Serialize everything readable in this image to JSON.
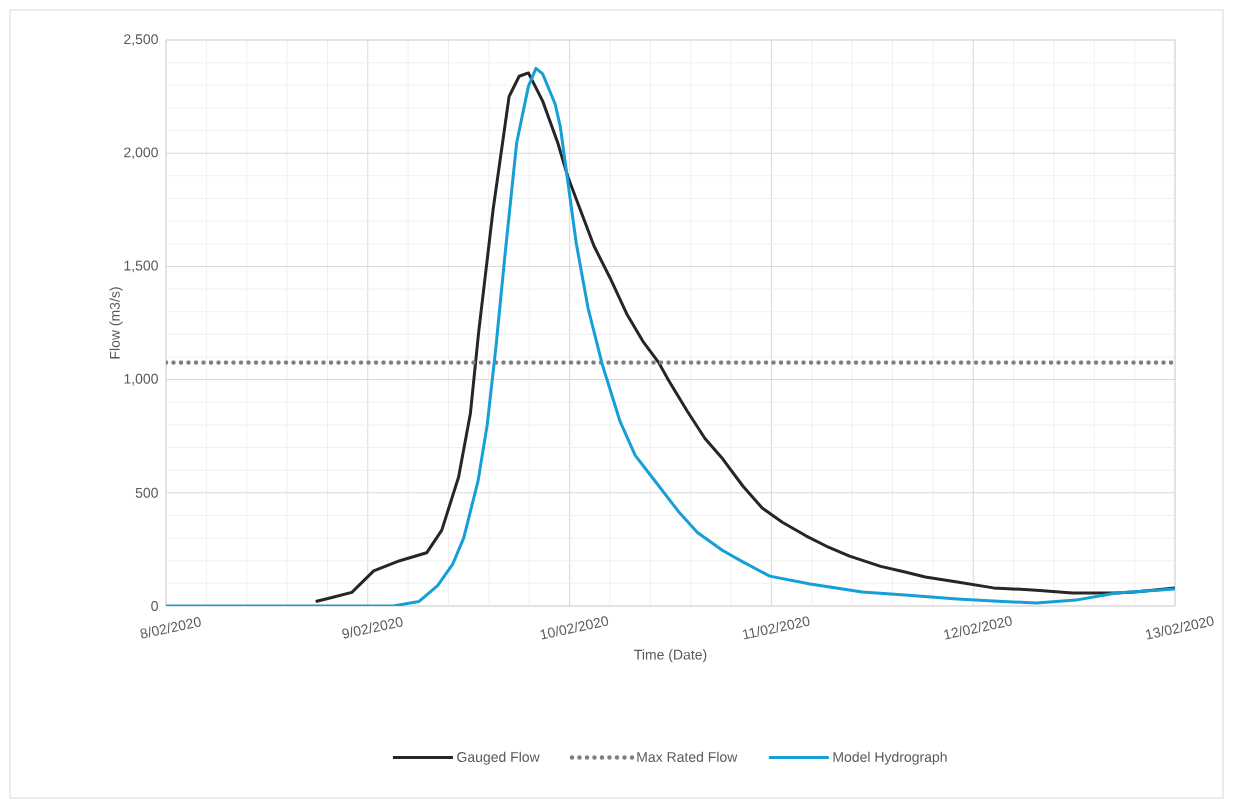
{
  "chart_data": {
    "type": "line",
    "xlabel": "Time (Date)",
    "ylabel": "Flow (m3/s)",
    "xlim": [
      "2020-02-08",
      "2020-02-13"
    ],
    "xticks": [
      {
        "value": "2020-02-08",
        "label": "8/02/2020"
      },
      {
        "value": "2020-02-09",
        "label": "9/02/2020"
      },
      {
        "value": "2020-02-10",
        "label": "10/02/2020"
      },
      {
        "value": "2020-02-11",
        "label": "11/02/2020"
      },
      {
        "value": "2020-02-12",
        "label": "12/02/2020"
      },
      {
        "value": "2020-02-13",
        "label": "13/02/2020"
      }
    ],
    "ylim": [
      0,
      2500
    ],
    "yticks": [
      0,
      500,
      {
        "value": 1000,
        "label": "1,000"
      },
      {
        "value": 1500,
        "label": "1,500"
      },
      {
        "value": 2000,
        "label": "2,000"
      },
      {
        "value": 2500,
        "label": "2,500"
      }
    ],
    "grid": true,
    "legend": "bottom",
    "marker": "none",
    "line_style": "solid",
    "series": [
      {
        "name": "Gauged Flow",
        "color": "#262626",
        "x": [
          "2020-02-08T17:48",
          "2020-02-08T19:30",
          "2020-02-08T22:06",
          "2020-02-09T00:42",
          "2020-02-09T03:48",
          "2020-02-09T07:00",
          "2020-02-09T08:48",
          "2020-02-09T10:48",
          "2020-02-09T12:12",
          "2020-02-09T13:12",
          "2020-02-09T14:54",
          "2020-02-09T16:48",
          "2020-02-09T18:00",
          "2020-02-09T19:06",
          "2020-02-09T20:48",
          "2020-02-09T22:36",
          "2020-02-09T23:48",
          "2020-02-10T02:54",
          "2020-02-10T04:48",
          "2020-02-10T06:48",
          "2020-02-10T08:42",
          "2020-02-10T10:36",
          "2020-02-10T11:48",
          "2020-02-10T14:00",
          "2020-02-10T16:06",
          "2020-02-10T18:12",
          "2020-02-10T20:36",
          "2020-02-10T22:54",
          "2020-02-11T01:18",
          "2020-02-11T04:06",
          "2020-02-11T06:30",
          "2020-02-11T09:18",
          "2020-02-11T13:00",
          "2020-02-11T15:54",
          "2020-02-11T18:18",
          "2020-02-11T22:06",
          "2020-02-12T02:24",
          "2020-02-12T07:30",
          "2020-02-12T11:48",
          "2020-02-12T17:00",
          "2020-02-12T19:12",
          "2020-02-13T00:00"
        ],
        "values": [
          20,
          35,
          60,
          155,
          200,
          235,
          335,
          570,
          850,
          1215,
          1750,
          2250,
          2340,
          2355,
          2230,
          2045,
          1895,
          1590,
          1450,
          1290,
          1170,
          1075,
          995,
          860,
          740,
          650,
          530,
          433,
          370,
          310,
          265,
          220,
          175,
          150,
          128,
          106,
          80,
          70,
          57,
          57,
          62,
          80
        ]
      },
      {
        "name": "Model Hydrograph",
        "color": "#159fd6",
        "x": [
          "2020-02-08T00:00",
          "2020-02-09T03:00",
          "2020-02-09T06:06",
          "2020-02-09T08:18",
          "2020-02-09T10:06",
          "2020-02-09T11:24",
          "2020-02-09T13:06",
          "2020-02-09T14:12",
          "2020-02-09T15:12",
          "2020-02-09T16:18",
          "2020-02-09T17:42",
          "2020-02-09T19:06",
          "2020-02-09T20:00",
          "2020-02-09T20:48",
          "2020-02-09T22:18",
          "2020-02-09T22:54",
          "2020-02-10T00:48",
          "2020-02-10T02:12",
          "2020-02-10T03:54",
          "2020-02-10T06:00",
          "2020-02-10T07:48",
          "2020-02-10T10:12",
          "2020-02-10T13:00",
          "2020-02-10T15:12",
          "2020-02-10T18:12",
          "2020-02-10T20:36",
          "2020-02-10T23:48",
          "2020-02-11T04:36",
          "2020-02-11T10:48",
          "2020-02-11T15:54",
          "2020-02-11T22:06",
          "2020-02-12T02:24",
          "2020-02-12T07:30",
          "2020-02-12T12:12",
          "2020-02-12T17:00",
          "2020-02-13T00:00"
        ],
        "values": [
          0,
          0,
          20,
          90,
          185,
          300,
          550,
          800,
          1130,
          1545,
          2045,
          2295,
          2375,
          2350,
          2215,
          2115,
          1600,
          1315,
          1065,
          815,
          665,
          550,
          415,
          325,
          245,
          195,
          132,
          97,
          62,
          49,
          31,
          22,
          13,
          26,
          57,
          75
        ]
      }
    ],
    "ref_lines": [
      {
        "axis": "y",
        "value": 1075,
        "label": "Max Rated Flow",
        "color": "#7f7f7f",
        "line_style": "dotted"
      }
    ]
  }
}
